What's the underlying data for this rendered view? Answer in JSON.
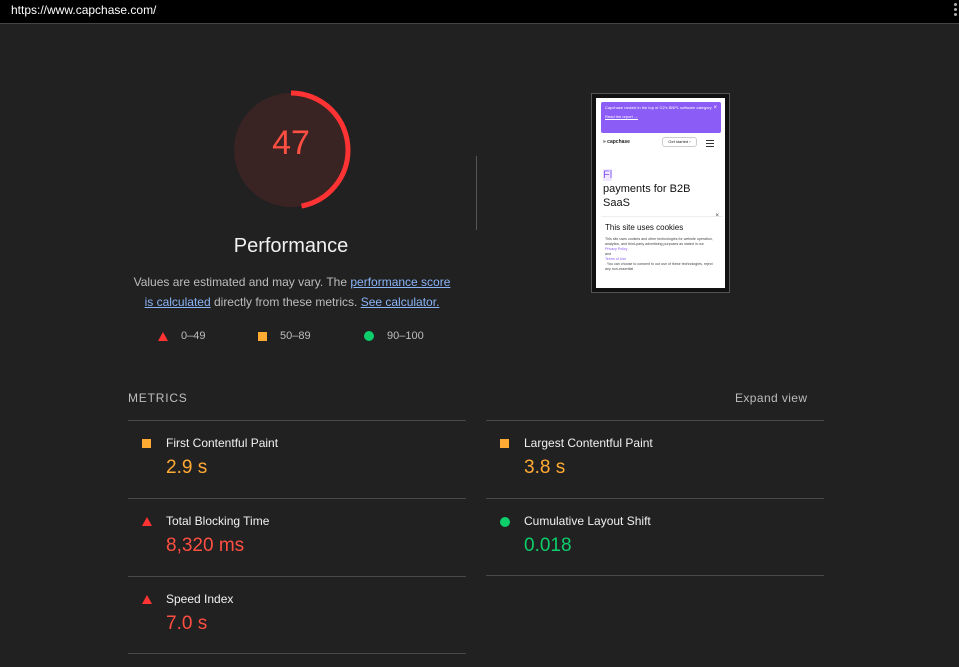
{
  "browser": {
    "url": "https://www.capchase.com/"
  },
  "score": {
    "value": "47",
    "fraction": 0.47,
    "color": "#ff3333",
    "title": "Performance"
  },
  "description": {
    "before": "Values are estimated and may vary. The ",
    "link1": "performance score is calculated",
    "middle": " directly from these metrics. ",
    "link2": "See calculator."
  },
  "legend": [
    {
      "icon": "fail-triangle-icon",
      "label": "0–49",
      "color": "#ff3333"
    },
    {
      "icon": "average-square-icon",
      "label": "50–89",
      "color": "#ffaa33"
    },
    {
      "icon": "pass-circle-icon",
      "label": "90–100",
      "color": "#0cce6b"
    }
  ],
  "screenshot": {
    "banner_text": "Capchase ranked in the top of G2's BNPL software category",
    "banner_link": "Read the report →",
    "banner_close": "×",
    "logo": "» capchase",
    "cta": "Get started  ›",
    "headline_highlight": "Fl",
    "headline_rest": "payments for B2B SaaS",
    "cookie_title": "This site uses cookies",
    "cookie_body": "This site uses cookies and other technologies for website operation, analytics, and third-party advertising purposes as stated in our",
    "cookie_privacy": "Privacy Policy",
    "cookie_and": "and",
    "cookie_terms": "Terms of Use",
    "cookie_more": ". You can choose to consent to our use of these technologies, reject any non-essential",
    "cookie_close": "×"
  },
  "metrics": {
    "title": "METRICS",
    "expand": "Expand view",
    "items": [
      {
        "name": "First Contentful Paint",
        "value": "2.9 s",
        "rating": "average"
      },
      {
        "name": "Largest Contentful Paint",
        "value": "3.8 s",
        "rating": "average"
      },
      {
        "name": "Total Blocking Time",
        "value": "8,320 ms",
        "rating": "fail"
      },
      {
        "name": "Cumulative Layout Shift",
        "value": "0.018",
        "rating": "pass"
      },
      {
        "name": "Speed Index",
        "value": "7.0 s",
        "rating": "fail"
      }
    ]
  }
}
